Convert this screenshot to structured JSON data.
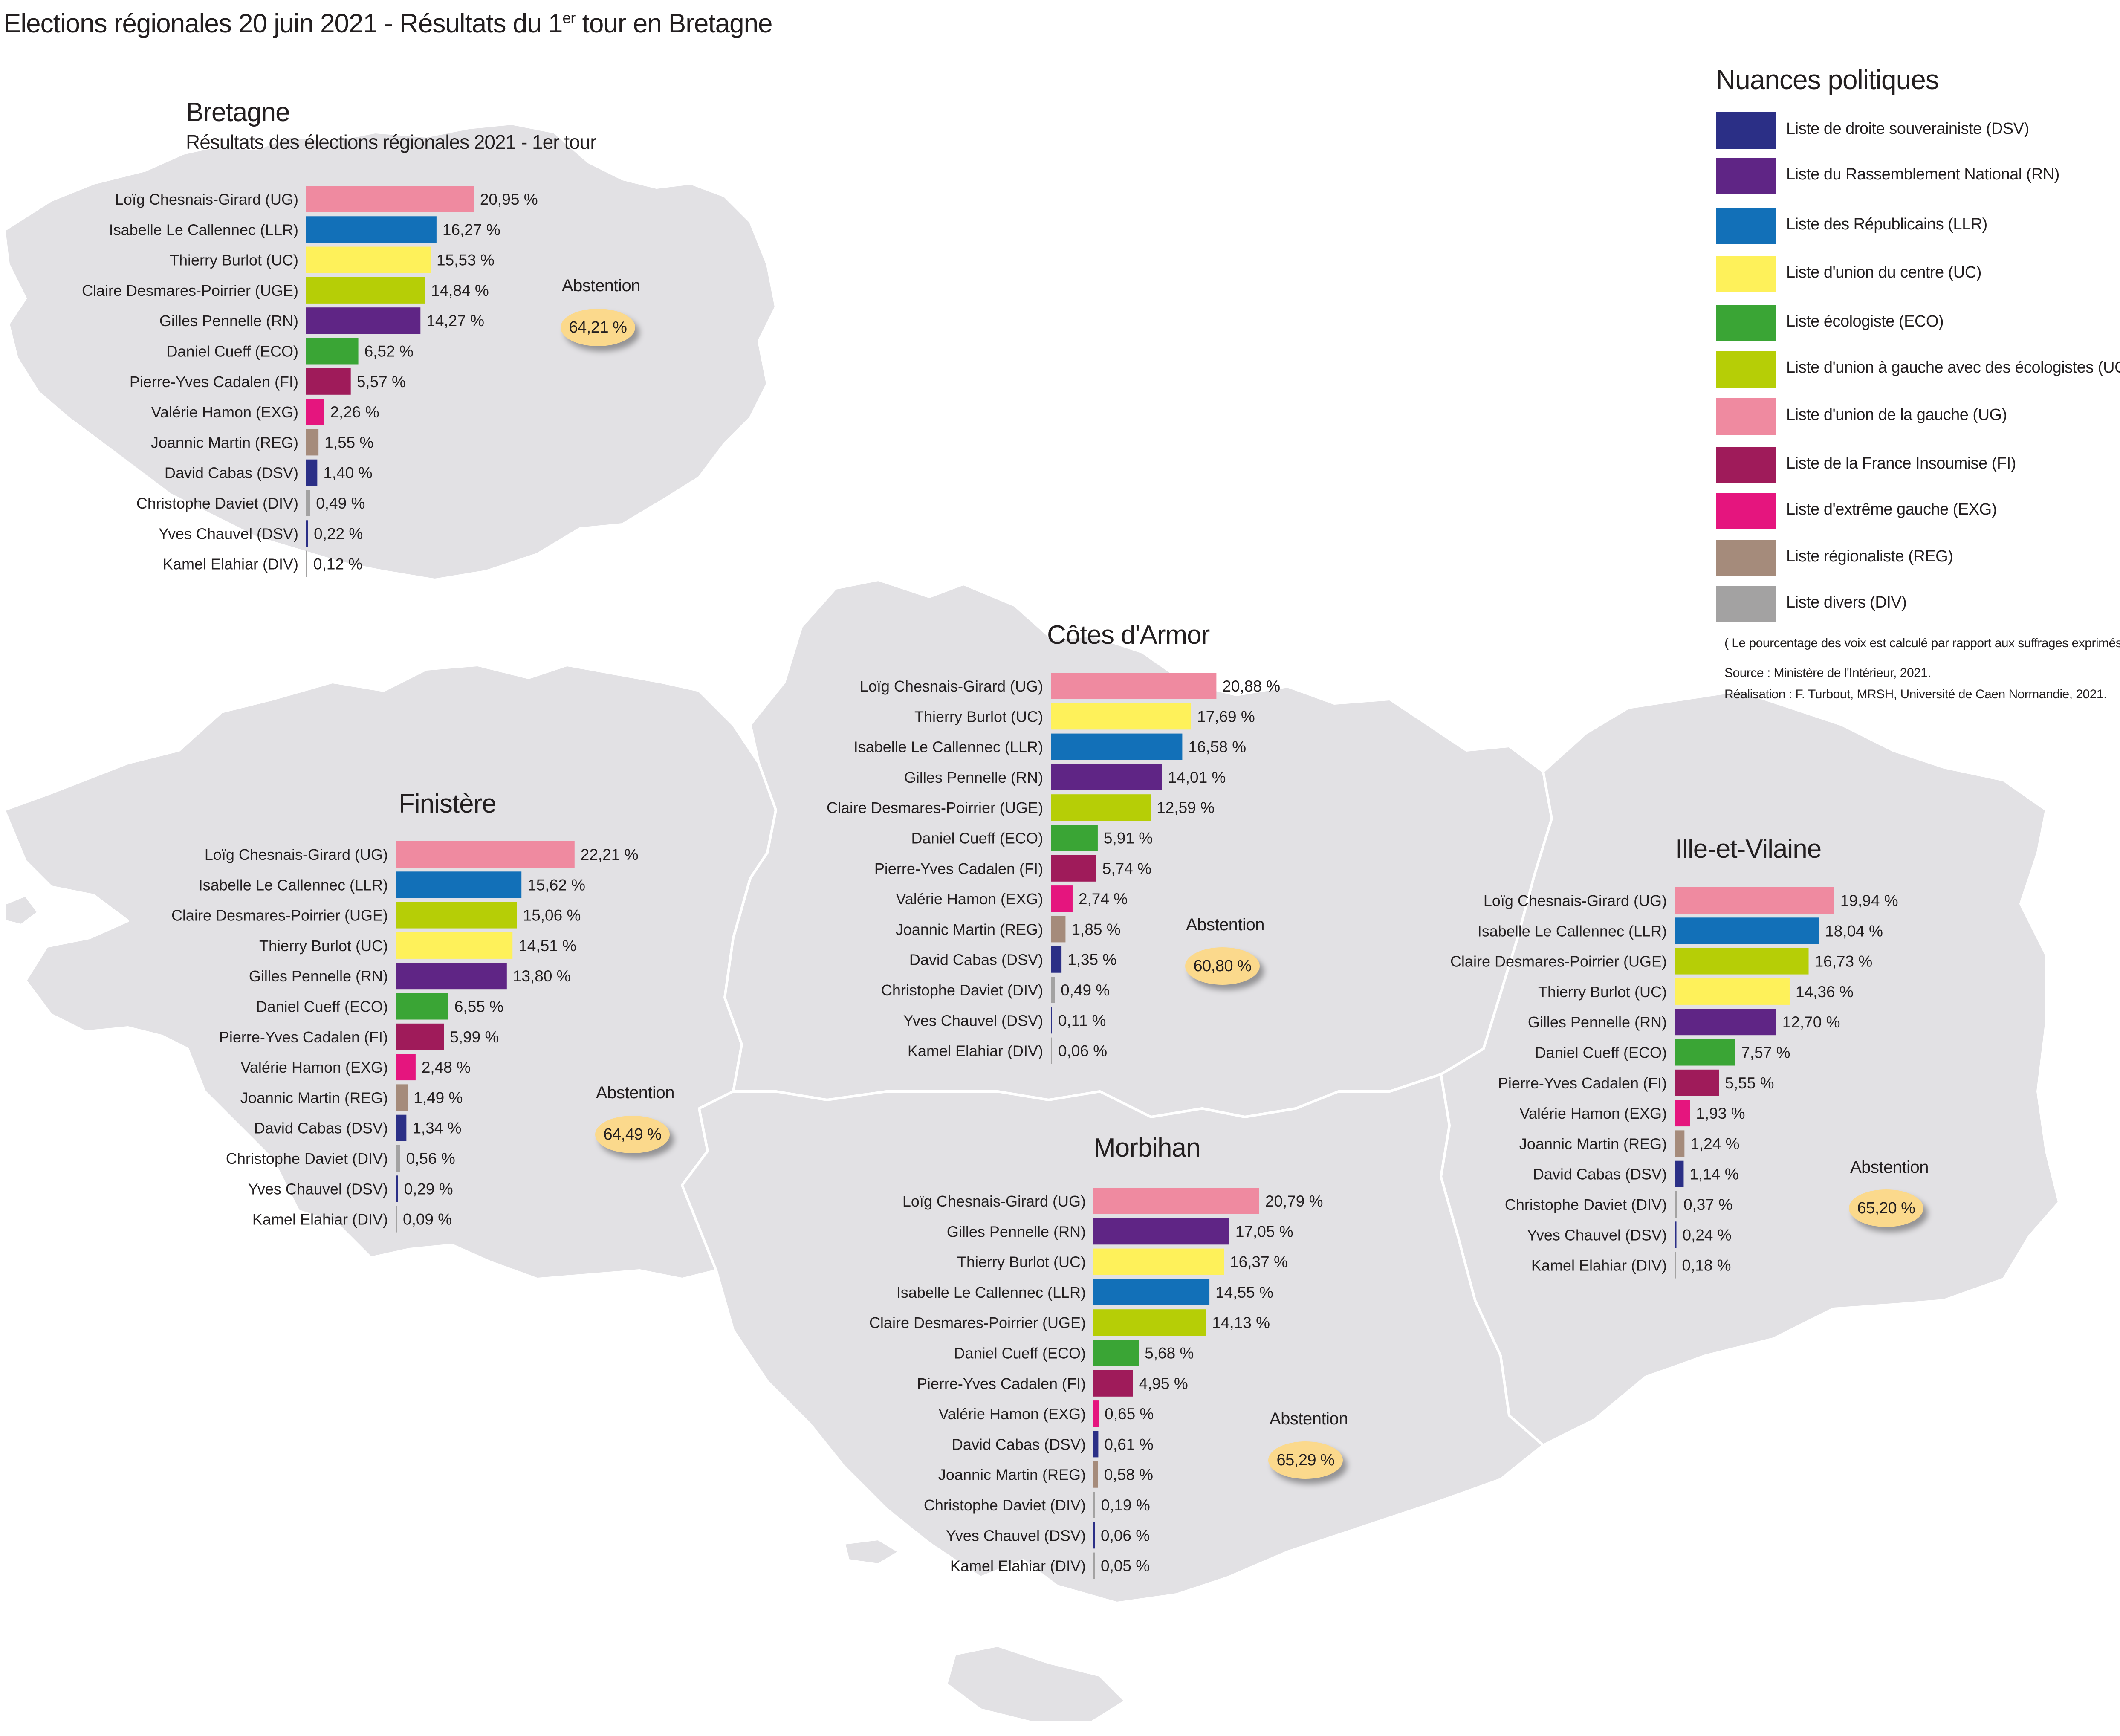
{
  "title": "Elections régionales 20 juin 2021 - Résultats du 1",
  "title_sup": "er",
  "title_end": " tour en Bretagne",
  "colors": {
    "DSV": "#2b2f86",
    "RN": "#5f2585",
    "LLR": "#1270b8",
    "UC": "#fef15a",
    "ECO": "#3aa535",
    "UGE": "#b6ce06",
    "UG": "#ef8aa0",
    "FI": "#9f1b5a",
    "EXG": "#e5157e",
    "REG": "#a58b7b",
    "DIV": "#a3a2a2",
    "map_land": "#e2e1e4",
    "map_border": "#ffffff",
    "abstention_badge": "#fbd98c"
  },
  "legend": {
    "title": "Nuances politiques",
    "items": [
      {
        "code": "DSV",
        "label": "Liste de droite souverainiste (DSV)"
      },
      {
        "code": "RN",
        "label": "Liste du Rassemblement National (RN)"
      },
      {
        "code": "LLR",
        "label": "Liste des Républicains (LLR)"
      },
      {
        "code": "UC",
        "label": "Liste d'union du centre (UC)"
      },
      {
        "code": "ECO",
        "label": "Liste écologiste (ECO)"
      },
      {
        "code": "UGE",
        "label": "Liste d'union à gauche avec des écologistes (UGE)"
      },
      {
        "code": "UG",
        "label": "Liste d'union de la gauche (UG)"
      },
      {
        "code": "FI",
        "label": "Liste de la France Insoumise (FI)"
      },
      {
        "code": "EXG",
        "label": "Liste d'extrême gauche (EXG)"
      },
      {
        "code": "REG",
        "label": "Liste régionaliste (REG)"
      },
      {
        "code": "DIV",
        "label": "Liste divers (DIV)"
      }
    ],
    "note": "( Le pourcentage des voix est calculé par rapport aux suffrages exprimés )",
    "source": "Source : Ministère de l'Intérieur, 2021.",
    "credit": "Réalisation : F. Turbout, MRSH, Université de Caen Normandie, 2021."
  },
  "abstention_label": "Abstention",
  "chart_data": [
    {
      "type": "bar",
      "orientation": "horizontal",
      "title": "Bretagne",
      "subtitle": "Résultats des élections régionales 2021 - 1er tour",
      "abstention": "64,21 %",
      "categories": [
        "Loïg Chesnais-Girard (UG)",
        "Isabelle Le Callennec (LLR)",
        "Thierry Burlot (UC)",
        "Claire Desmares-Poirrier (UGE)",
        "Gilles Pennelle (RN)",
        "Daniel Cueff (ECO)",
        "Pierre-Yves Cadalen (FI)",
        "Valérie Hamon (EXG)",
        "Joannic Martin (REG)",
        "David Cabas (DSV)",
        "Christophe Daviet (DIV)",
        "Yves Chauvel (DSV)",
        "Kamel Elahiar (DIV)"
      ],
      "nuances": [
        "UG",
        "LLR",
        "UC",
        "UGE",
        "RN",
        "ECO",
        "FI",
        "EXG",
        "REG",
        "DSV",
        "DIV",
        "DSV",
        "DIV"
      ],
      "values": [
        20.95,
        16.27,
        15.53,
        14.84,
        14.27,
        6.52,
        5.57,
        2.26,
        1.55,
        1.4,
        0.49,
        0.22,
        0.12
      ],
      "value_labels": [
        "20,95 %",
        "16,27 %",
        "15,53 %",
        "14,84 %",
        "14,27 %",
        "6,52 %",
        "5,57 %",
        "2,26 %",
        "1,55 %",
        "1,40 %",
        "0,49 %",
        "0,22 %",
        "0,12 %"
      ]
    },
    {
      "type": "bar",
      "orientation": "horizontal",
      "title": "Côtes d'Armor",
      "abstention": "60,80 %",
      "categories": [
        "Loïg Chesnais-Girard (UG)",
        "Thierry Burlot (UC)",
        "Isabelle Le Callennec (LLR)",
        "Gilles Pennelle (RN)",
        "Claire Desmares-Poirrier (UGE)",
        "Daniel Cueff (ECO)",
        "Pierre-Yves Cadalen (FI)",
        "Valérie Hamon (EXG)",
        "Joannic Martin (REG)",
        "David Cabas (DSV)",
        "Christophe Daviet (DIV)",
        "Yves Chauvel (DSV)",
        "Kamel Elahiar (DIV)"
      ],
      "nuances": [
        "UG",
        "UC",
        "LLR",
        "RN",
        "UGE",
        "ECO",
        "FI",
        "EXG",
        "REG",
        "DSV",
        "DIV",
        "DSV",
        "DIV"
      ],
      "values": [
        20.88,
        17.69,
        16.58,
        14.01,
        12.59,
        5.91,
        5.74,
        2.74,
        1.85,
        1.35,
        0.49,
        0.11,
        0.06
      ],
      "value_labels": [
        "20,88 %",
        "17,69 %",
        "16,58 %",
        "14,01 %",
        "12,59 %",
        "5,91 %",
        "5,74 %",
        "2,74 %",
        "1,85 %",
        "1,35 %",
        "0,49 %",
        "0,11 %",
        "0,06 %"
      ]
    },
    {
      "type": "bar",
      "orientation": "horizontal",
      "title": "Finistère",
      "abstention": "64,49 %",
      "categories": [
        "Loïg Chesnais-Girard (UG)",
        "Isabelle Le Callennec (LLR)",
        "Claire Desmares-Poirrier (UGE)",
        "Thierry Burlot (UC)",
        "Gilles Pennelle (RN)",
        "Daniel Cueff (ECO)",
        "Pierre-Yves Cadalen (FI)",
        "Valérie Hamon (EXG)",
        "Joannic Martin (REG)",
        "David Cabas (DSV)",
        "Christophe Daviet (DIV)",
        "Yves Chauvel (DSV)",
        "Kamel Elahiar (DIV)"
      ],
      "nuances": [
        "UG",
        "LLR",
        "UGE",
        "UC",
        "RN",
        "ECO",
        "FI",
        "EXG",
        "REG",
        "DSV",
        "DIV",
        "DSV",
        "DIV"
      ],
      "values": [
        22.21,
        15.62,
        15.06,
        14.51,
        13.8,
        6.55,
        5.99,
        2.48,
        1.49,
        1.34,
        0.56,
        0.29,
        0.09
      ],
      "value_labels": [
        "22,21 %",
        "15,62 %",
        "15,06 %",
        "14,51 %",
        "13,80 %",
        "6,55 %",
        "5,99 %",
        "2,48 %",
        "1,49 %",
        "1,34 %",
        "0,56 %",
        "0,29 %",
        "0,09 %"
      ]
    },
    {
      "type": "bar",
      "orientation": "horizontal",
      "title": "Ille-et-Vilaine",
      "abstention": "65,20 %",
      "categories": [
        "Loïg Chesnais-Girard (UG)",
        "Isabelle Le Callennec (LLR)",
        "Claire Desmares-Poirrier (UGE)",
        "Thierry Burlot (UC)",
        "Gilles Pennelle (RN)",
        "Daniel Cueff (ECO)",
        "Pierre-Yves Cadalen (FI)",
        "Valérie Hamon (EXG)",
        "Joannic Martin (REG)",
        "David Cabas (DSV)",
        "Christophe Daviet (DIV)",
        "Yves Chauvel (DSV)",
        "Kamel Elahiar (DIV)"
      ],
      "nuances": [
        "UG",
        "LLR",
        "UGE",
        "UC",
        "RN",
        "ECO",
        "FI",
        "EXG",
        "REG",
        "DSV",
        "DIV",
        "DSV",
        "DIV"
      ],
      "values": [
        19.94,
        18.04,
        16.73,
        14.36,
        12.7,
        7.57,
        5.55,
        1.93,
        1.24,
        1.14,
        0.37,
        0.24,
        0.18
      ],
      "value_labels": [
        "19,94 %",
        "18,04 %",
        "16,73 %",
        "14,36 %",
        "12,70 %",
        "7,57 %",
        "5,55 %",
        "1,93 %",
        "1,24 %",
        "1,14 %",
        "0,37 %",
        "0,24 %",
        "0,18 %"
      ]
    },
    {
      "type": "bar",
      "orientation": "horizontal",
      "title": "Morbihan",
      "abstention": "65,29 %",
      "categories": [
        "Loïg Chesnais-Girard (UG)",
        "Gilles Pennelle (RN)",
        "Thierry Burlot (UC)",
        "Isabelle Le Callennec (LLR)",
        "Claire Desmares-Poirrier (UGE)",
        "Daniel Cueff (ECO)",
        "Pierre-Yves Cadalen (FI)",
        "Valérie Hamon (EXG)",
        "David Cabas (DSV)",
        "Joannic Martin (REG)",
        "Christophe Daviet (DIV)",
        "Yves Chauvel (DSV)",
        "Kamel Elahiar (DIV)"
      ],
      "nuances": [
        "UG",
        "RN",
        "UC",
        "LLR",
        "UGE",
        "ECO",
        "FI",
        "EXG",
        "DSV",
        "REG",
        "DIV",
        "DSV",
        "DIV"
      ],
      "values": [
        20.79,
        17.05,
        16.37,
        14.55,
        14.13,
        5.68,
        4.95,
        0.65,
        0.61,
        0.58,
        0.19,
        0.06,
        0.05
      ],
      "value_labels": [
        "20,79 %",
        "17,05 %",
        "16,37 %",
        "14,55 %",
        "14,13 %",
        "5,68 %",
        "4,95 %",
        "0,65 %",
        "0,61 %",
        "0,58 %",
        "0,19 %",
        "0,06 %",
        "0,05 %"
      ]
    }
  ]
}
